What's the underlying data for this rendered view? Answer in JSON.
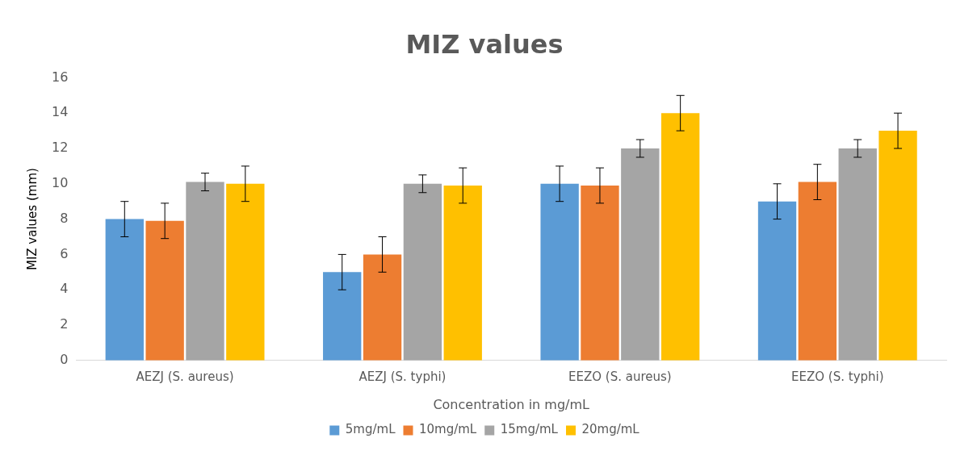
{
  "chart_data": {
    "type": "bar",
    "title": "MIZ values",
    "xlabel": "Concentration in mg/mL",
    "ylabel": "MIZ values (mm)",
    "categories": [
      "AEZJ (S. aureus)",
      "AEZJ (S. typhi)",
      "EEZO (S. aureus)",
      "EEZO (S. typhi)"
    ],
    "series": [
      {
        "name": "5mg/mL",
        "color": "#5b9bd5",
        "values": [
          8,
          5,
          10,
          9
        ],
        "errors": [
          1,
          1,
          1,
          1
        ]
      },
      {
        "name": "10mg/mL",
        "color": "#ed7d31",
        "values": [
          7.9,
          6,
          9.9,
          10.1
        ],
        "errors": [
          1,
          1,
          1,
          1
        ]
      },
      {
        "name": "15mg/mL",
        "color": "#a5a5a5",
        "values": [
          10.1,
          10,
          12,
          12
        ],
        "errors": [
          0.5,
          0.5,
          0.5,
          0.5
        ]
      },
      {
        "name": "20mg/mL",
        "color": "#ffc000",
        "values": [
          10,
          9.9,
          14,
          13
        ],
        "errors": [
          1,
          1,
          1,
          1
        ]
      }
    ],
    "ylim": [
      0,
      16
    ],
    "yticks": [
      0,
      2,
      4,
      6,
      8,
      10,
      12,
      14,
      16
    ],
    "grid": false,
    "legend": "bottom"
  }
}
